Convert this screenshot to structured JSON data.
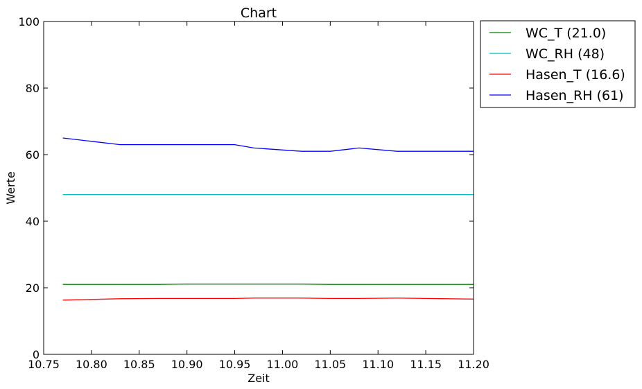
{
  "chart_data": {
    "type": "line",
    "title": "Chart",
    "xlabel": "Zeit",
    "ylabel": "Werte",
    "xlim": [
      10.75,
      11.2
    ],
    "ylim": [
      0,
      100
    ],
    "x_ticks": [
      "10.75",
      "10.80",
      "10.85",
      "10.90",
      "10.95",
      "11.00",
      "11.05",
      "11.10",
      "11.15",
      "11.20"
    ],
    "y_ticks": [
      "0",
      "20",
      "40",
      "60",
      "80",
      "100"
    ],
    "grid": false,
    "legend_position": "outside-top-right",
    "x": [
      10.77,
      10.8,
      10.83,
      10.87,
      10.9,
      10.95,
      10.97,
      11.02,
      11.05,
      11.08,
      11.12,
      11.15,
      11.2
    ],
    "series": [
      {
        "name": "WC_T (21.0)",
        "color": "#008000",
        "values": [
          21.0,
          21.0,
          21.0,
          21.0,
          21.1,
          21.1,
          21.1,
          21.1,
          21.0,
          21.0,
          21.0,
          21.0,
          21.0
        ]
      },
      {
        "name": "WC_RH (48)",
        "color": "#00bfbf",
        "values": [
          48,
          48,
          48,
          48,
          48,
          48,
          48,
          48,
          48,
          48,
          48,
          48,
          48
        ]
      },
      {
        "name": "Hasen_T (16.6)",
        "color": "#ff0000",
        "values": [
          16.3,
          16.5,
          16.7,
          16.8,
          16.8,
          16.8,
          16.9,
          16.9,
          16.8,
          16.8,
          16.9,
          16.8,
          16.6
        ]
      },
      {
        "name": "Hasen_RH (61)",
        "color": "#0000ff",
        "values": [
          65,
          64,
          63,
          63,
          63,
          63,
          62,
          61,
          61,
          62,
          61,
          61,
          61
        ]
      }
    ]
  }
}
